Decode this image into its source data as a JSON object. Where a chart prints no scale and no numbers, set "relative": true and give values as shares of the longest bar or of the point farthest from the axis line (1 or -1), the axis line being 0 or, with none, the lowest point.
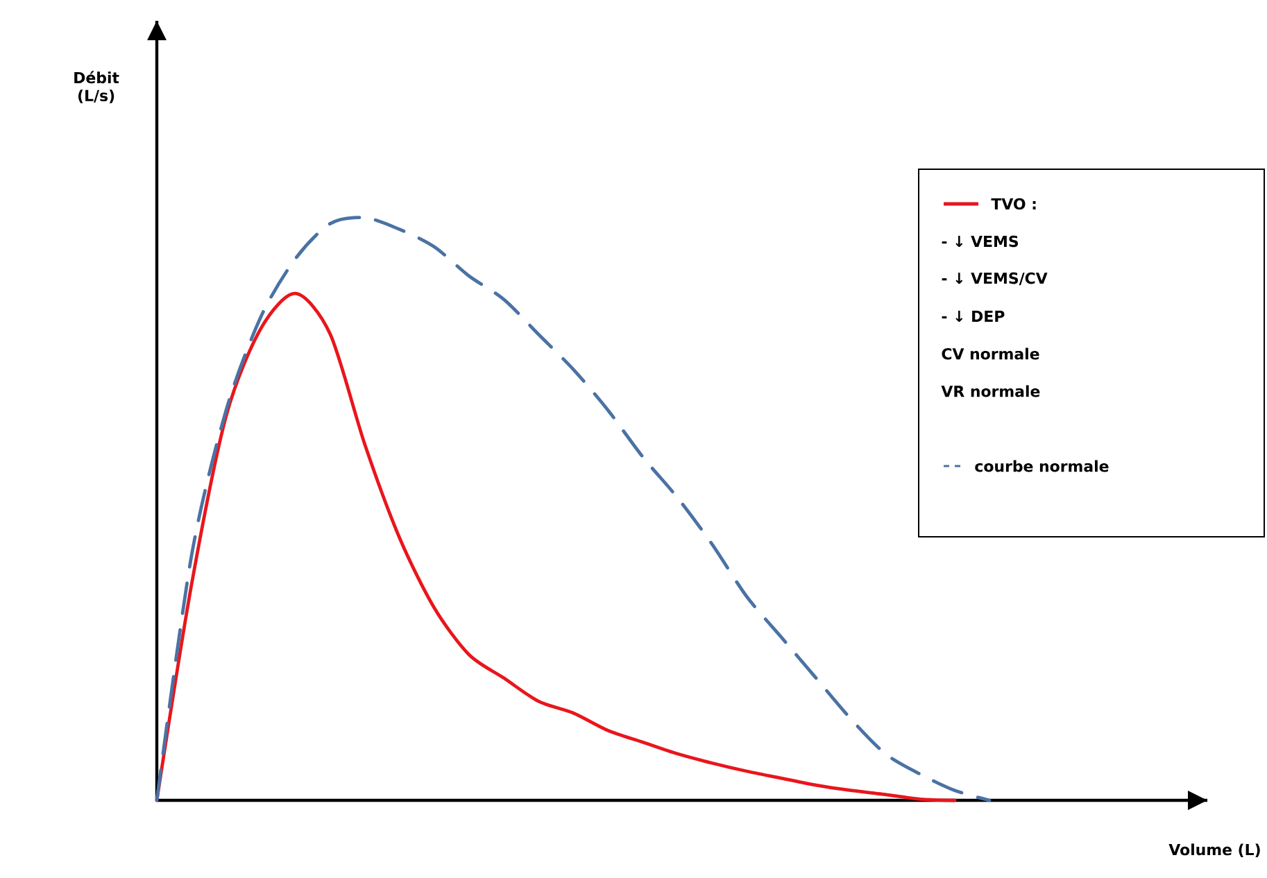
{
  "chart_data": {
    "type": "line",
    "relative": true,
    "categories": [
      null,
      null,
      null,
      null,
      null,
      null,
      null,
      null,
      null,
      null,
      null,
      null,
      null,
      null,
      null,
      null,
      null,
      null,
      null,
      null,
      null,
      null,
      null,
      null,
      null
    ],
    "series": [
      {
        "name": "TVO :",
        "color": "#e8161c",
        "line_style": "solid",
        "values": [
          0,
          0.37,
          0.66,
          0.81,
          0.87,
          0.8,
          0.61,
          0.45,
          0.33,
          0.25,
          0.21,
          0.17,
          0.15,
          0.12,
          0.1,
          0.08,
          0.064,
          0.05,
          0.038,
          0.026,
          0.017,
          0.01,
          0.002,
          0,
          null
        ]
      },
      {
        "name": "courbe normale",
        "color": "#4a72a4",
        "line_style": "dashed",
        "values": [
          0,
          0.42,
          0.67,
          0.83,
          0.93,
          0.99,
          1.0,
          0.98,
          0.95,
          0.9,
          0.86,
          0.8,
          0.74,
          0.67,
          0.59,
          0.52,
          0.44,
          0.35,
          0.28,
          0.21,
          0.14,
          0.08,
          0.045,
          0.017,
          0
        ]
      }
    ],
    "annotations": [
      "Débit (L/s)",
      "Volume (L)",
      "- ↓ VEMS",
      "- ↓ VEMS/CV",
      "- ↓ DEP",
      "CV normale",
      "VR normale"
    ],
    "legend": "right"
  }
}
